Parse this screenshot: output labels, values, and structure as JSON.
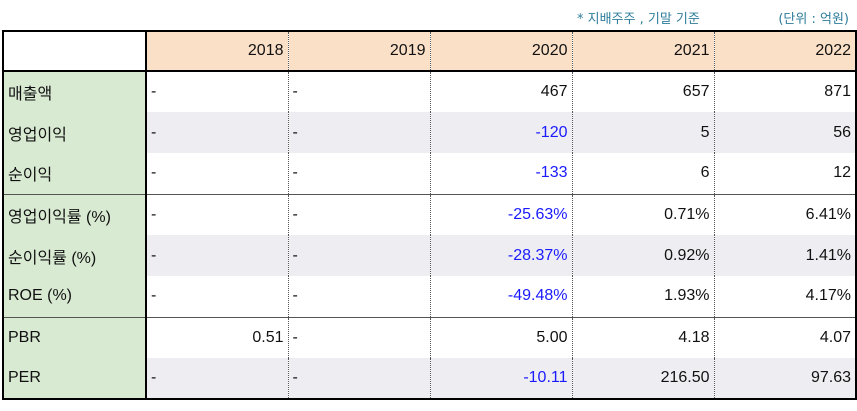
{
  "notes": {
    "basis": "* 지배주주 , 기말 기준",
    "unit": "(단위 : 억원)"
  },
  "table": {
    "years": [
      "2018",
      "2019",
      "2020",
      "2021",
      "2022"
    ],
    "rows": [
      {
        "label": "매출액",
        "values": [
          "-",
          "-",
          "467",
          "657",
          "871"
        ]
      },
      {
        "label": "영업이익",
        "values": [
          "-",
          "-",
          "-120",
          "5",
          "56"
        ]
      },
      {
        "label": "순이익",
        "values": [
          "-",
          "-",
          "-133",
          "6",
          "12"
        ]
      },
      {
        "label": "영업이익률 (%)",
        "values": [
          "-",
          "-",
          "-25.63%",
          "0.71%",
          "6.41%"
        ]
      },
      {
        "label": "순이익률 (%)",
        "values": [
          "-",
          "-",
          "-28.37%",
          "0.92%",
          "1.41%"
        ]
      },
      {
        "label": "ROE (%)",
        "values": [
          "-",
          "-",
          "-49.48%",
          "1.93%",
          "4.17%"
        ]
      },
      {
        "label": "PBR",
        "values": [
          "0.51",
          "-",
          "5.00",
          "4.18",
          "4.07"
        ]
      },
      {
        "label": "PER",
        "values": [
          "-",
          "-",
          "-10.11",
          "216.50",
          "97.63"
        ]
      }
    ]
  },
  "colors": {
    "header_bg": "#fbe0c8",
    "label_bg": "#d9ead3",
    "alt_row_bg": "#eeeef2",
    "negative_text": "#1a1aff",
    "note_text": "#2e7d9a"
  }
}
